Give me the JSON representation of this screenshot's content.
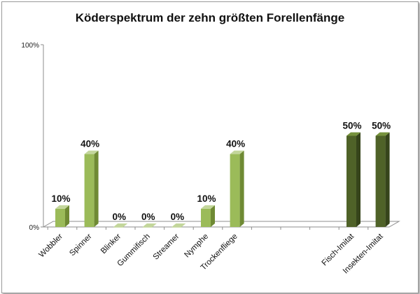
{
  "chart_data": {
    "type": "bar",
    "title": "Köderspektrum der zehn größten Forellenfänge",
    "xlabel": "",
    "ylabel": "",
    "ylim": [
      0,
      100
    ],
    "y_tick_labels": [
      "100%",
      "0%"
    ],
    "grid": false,
    "legend": "none",
    "categories": [
      "Wobbler",
      "Spinner",
      "Blinker",
      "Gummifisch",
      "Streamer",
      "Nymphe",
      "Trockenfliege",
      "",
      "",
      "",
      "Fisch-Imitat",
      "Insekten-Imitat"
    ],
    "values": [
      10,
      40,
      0,
      0,
      0,
      10,
      40,
      null,
      null,
      null,
      50,
      50
    ],
    "data_labels": [
      "10%",
      "40%",
      "0%",
      "0%",
      "0%",
      "10%",
      "40%",
      "",
      "",
      "",
      "50%",
      "50%"
    ],
    "bar_groups": [
      "light",
      "light",
      "light",
      "light",
      "light",
      "light",
      "light",
      "",
      "",
      "",
      "dark",
      "dark"
    ],
    "colors": {
      "light_front": "#9bbb59",
      "light_side": "#6f8a34",
      "light_top": "#c3d69b",
      "dark_front": "#4f6228",
      "dark_side": "#36441b",
      "dark_top": "#76923c",
      "axis": "#8c8c8c",
      "floor": "#ffffff"
    }
  }
}
